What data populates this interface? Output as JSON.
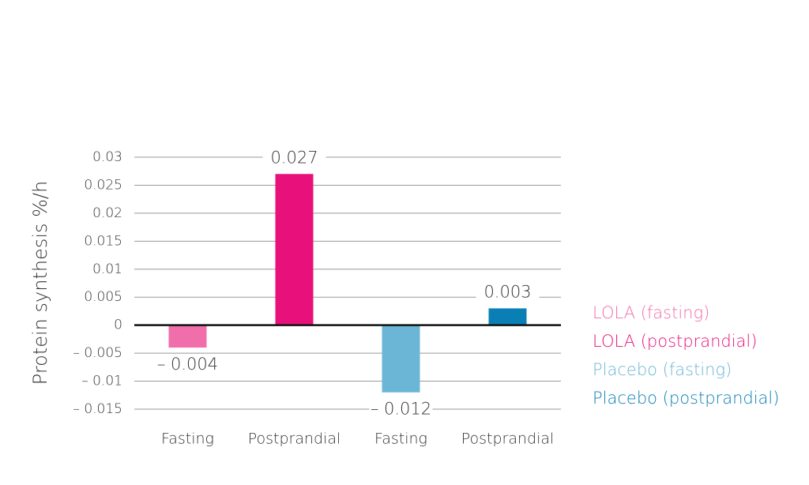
{
  "chart_data": {
    "type": "bar",
    "y_label": "Protein synthesis %/h",
    "categories": [
      "Fasting",
      "Postprandial",
      "Fasting",
      "Postprandial"
    ],
    "series": [
      {
        "name": "LOLA (fasting)",
        "color": "#f06eaa",
        "values": [
          -0.004,
          null,
          null,
          null
        ],
        "value_labels": [
          "– 0.004",
          null,
          null,
          null
        ]
      },
      {
        "name": "LOLA (postprandial)",
        "color": "#e8107a",
        "values": [
          null,
          0.027,
          null,
          null
        ]
      },
      {
        "name": "Placebo (fasting)",
        "color": "#6bb6d6",
        "values": [
          null,
          null,
          -0.012,
          null
        ],
        "value_labels": [
          null,
          null,
          "– 0.012",
          null
        ]
      },
      {
        "name": "Placebo (postprandial)",
        "color": "#0a7fb5",
        "values": [
          null,
          null,
          null,
          0.003
        ]
      }
    ],
    "ylim": [
      -0.015,
      0.03
    ],
    "yticks": [
      {
        "value": -0.015,
        "label": "– 0.015"
      },
      {
        "value": -0.01,
        "label": "– 0.01"
      },
      {
        "value": -0.005,
        "label": "– 0.005"
      },
      0,
      0.005,
      0.01,
      0.015,
      0.02,
      0.025,
      0.03
    ],
    "grid": true,
    "legend": "right"
  }
}
